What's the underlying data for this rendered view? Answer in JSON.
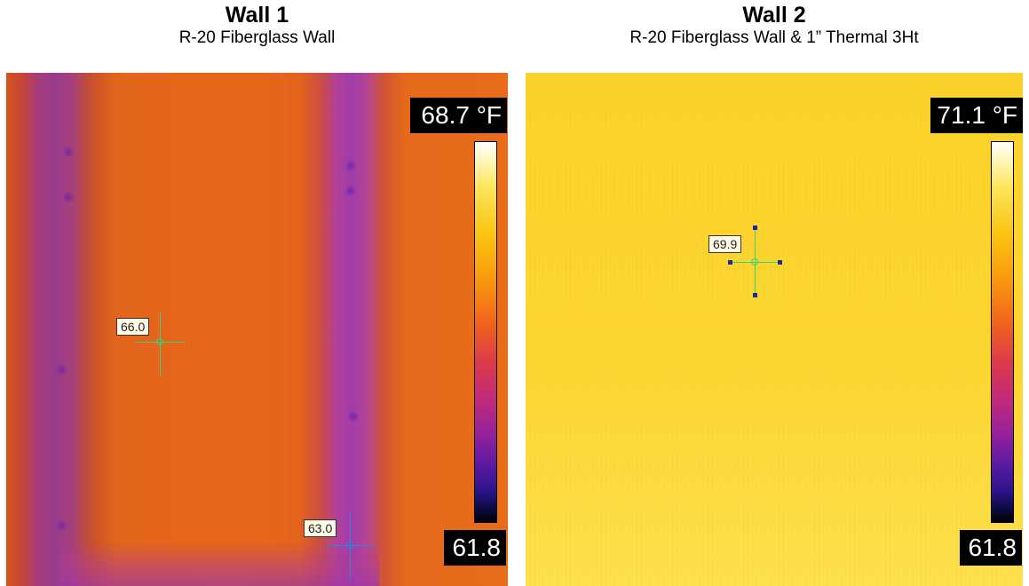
{
  "panels": [
    {
      "title": "Wall 1",
      "subtitle": "R-20 Fiberglass Wall",
      "scale": {
        "max_label": "68.7 °F",
        "min_label": "61.8",
        "max": 68.7,
        "min": 61.8,
        "unit": "°F"
      },
      "spots": [
        {
          "label": "66.0",
          "value": 66.0
        },
        {
          "label": "63.0",
          "value": 63.0
        }
      ]
    },
    {
      "title": "Wall 2",
      "subtitle": "R-20 Fiberglass Wall & 1” Thermal 3Ht",
      "scale": {
        "max_label": "71.1 °F",
        "min_label": "61.8",
        "max": 71.1,
        "min": 61.8,
        "unit": "°F"
      },
      "spots": [
        {
          "label": "69.9",
          "value": 69.9
        }
      ]
    }
  ],
  "colors": {
    "wall1_dominant": "#e7671a",
    "wall1_stud": "#a13cab",
    "wall2_dominant": "#fcd630",
    "crosshair_green": "#39d07a",
    "crosshair_blue": "#2f86d8",
    "handle_blue": "#1c2aa0"
  }
}
